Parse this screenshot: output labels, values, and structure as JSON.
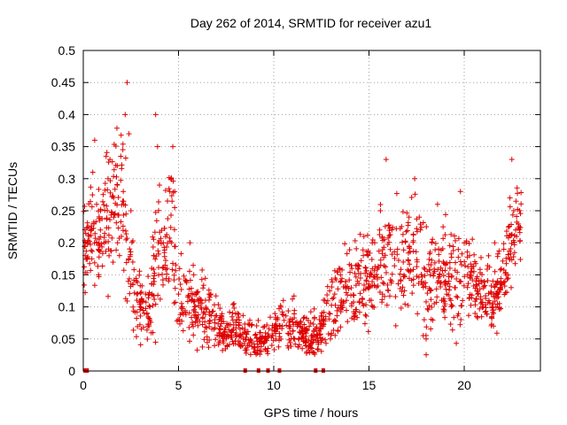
{
  "chart_data": {
    "type": "scatter",
    "title": "Day 262 of 2014, SRMTID for receiver azu1",
    "xlabel": "GPS time / hours",
    "ylabel": "SRMTID / TECUs",
    "xlim": [
      0,
      24
    ],
    "ylim": [
      0,
      0.5
    ],
    "grid": true,
    "marker": "+",
    "color": "#e00000",
    "xticks": [
      0,
      5,
      10,
      15,
      20
    ],
    "xtick_labels": [
      "0",
      "5",
      "10",
      "15",
      "20"
    ],
    "yticks": [
      0,
      0.05,
      0.1,
      0.15,
      0.2,
      0.25,
      0.3,
      0.35,
      0.4,
      0.45,
      0.5
    ],
    "ytick_labels": [
      "0",
      "0.05",
      "0.1",
      "0.15",
      "0.2",
      "0.25",
      "0.3",
      "0.35",
      "0.4",
      "0.45",
      "0.5"
    ],
    "zero_values_x": [
      0.1,
      0.2,
      8.5,
      9.2,
      9.7,
      10.3,
      12.2,
      12.6
    ],
    "envelope": {
      "x": [
        0,
        0.5,
        1,
        1.5,
        2,
        2.2,
        2.5,
        3,
        3.5,
        3.8,
        4.2,
        4.6,
        5,
        5.5,
        6,
        6.5,
        7,
        7.5,
        8,
        8.5,
        9,
        9.5,
        10,
        10.5,
        11,
        11.5,
        12,
        12.5,
        13,
        13.5,
        14,
        14.5,
        15,
        15.5,
        16,
        16.5,
        17,
        17.5,
        18,
        18.5,
        19,
        19.5,
        20,
        20.5,
        21,
        21.5,
        22,
        22.5,
        23
      ],
      "center": [
        0.2,
        0.21,
        0.22,
        0.25,
        0.27,
        0.23,
        0.15,
        0.1,
        0.09,
        0.17,
        0.2,
        0.24,
        0.12,
        0.1,
        0.1,
        0.09,
        0.07,
        0.065,
        0.06,
        0.05,
        0.045,
        0.045,
        0.06,
        0.075,
        0.065,
        0.06,
        0.05,
        0.06,
        0.1,
        0.12,
        0.13,
        0.14,
        0.14,
        0.17,
        0.18,
        0.16,
        0.17,
        0.18,
        0.12,
        0.16,
        0.15,
        0.14,
        0.15,
        0.13,
        0.12,
        0.11,
        0.14,
        0.2,
        0.25
      ],
      "spread": [
        0.06,
        0.06,
        0.07,
        0.08,
        0.09,
        0.08,
        0.06,
        0.04,
        0.04,
        0.08,
        0.07,
        0.08,
        0.05,
        0.04,
        0.04,
        0.04,
        0.03,
        0.03,
        0.03,
        0.025,
        0.025,
        0.025,
        0.03,
        0.03,
        0.03,
        0.025,
        0.025,
        0.03,
        0.04,
        0.05,
        0.05,
        0.05,
        0.06,
        0.07,
        0.07,
        0.07,
        0.07,
        0.07,
        0.06,
        0.07,
        0.06,
        0.06,
        0.05,
        0.05,
        0.04,
        0.04,
        0.05,
        0.06,
        0.06
      ]
    },
    "series": [
      {
        "name": "SRMTID azu1",
        "points": [
          [
            0.1,
            0.18
          ],
          [
            0.3,
            0.21
          ],
          [
            0.5,
            0.31
          ],
          [
            0.6,
            0.36
          ],
          [
            0.7,
            0.26
          ],
          [
            0.8,
            0.15
          ],
          [
            0.9,
            0.22
          ],
          [
            1.1,
            0.2
          ],
          [
            1.3,
            0.3
          ],
          [
            1.4,
            0.33
          ],
          [
            1.6,
            0.24
          ],
          [
            1.8,
            0.2
          ],
          [
            1.9,
            0.18
          ],
          [
            2.0,
            0.21
          ],
          [
            2.1,
            0.28
          ],
          [
            2.2,
            0.4
          ],
          [
            2.3,
            0.45
          ],
          [
            2.4,
            0.37
          ],
          [
            2.5,
            0.25
          ],
          [
            2.6,
            0.17
          ],
          [
            2.8,
            0.12
          ],
          [
            3.0,
            0.1
          ],
          [
            3.2,
            0.09
          ],
          [
            3.4,
            0.07
          ],
          [
            3.5,
            0.1
          ],
          [
            3.6,
            0.12
          ],
          [
            3.7,
            0.18
          ],
          [
            3.8,
            0.4
          ],
          [
            3.9,
            0.35
          ],
          [
            4.0,
            0.29
          ],
          [
            4.2,
            0.2
          ],
          [
            4.4,
            0.16
          ],
          [
            4.6,
            0.3
          ],
          [
            4.7,
            0.35
          ],
          [
            4.8,
            0.28
          ],
          [
            5.0,
            0.12
          ],
          [
            5.2,
            0.1
          ],
          [
            5.4,
            0.14
          ],
          [
            5.6,
            0.2
          ],
          [
            5.8,
            0.15
          ],
          [
            6.0,
            0.08
          ],
          [
            6.3,
            0.09
          ],
          [
            6.6,
            0.12
          ],
          [
            6.9,
            0.08
          ],
          [
            7.2,
            0.07
          ],
          [
            7.5,
            0.05
          ],
          [
            7.8,
            0.06
          ],
          [
            8.1,
            0.09
          ],
          [
            8.4,
            0.05
          ],
          [
            8.7,
            0.04
          ],
          [
            9.0,
            0.03
          ],
          [
            9.3,
            0.06
          ],
          [
            9.6,
            0.05
          ],
          [
            9.9,
            0.04
          ],
          [
            10.2,
            0.08
          ],
          [
            10.5,
            0.11
          ],
          [
            10.8,
            0.07
          ],
          [
            11.1,
            0.05
          ],
          [
            11.4,
            0.07
          ],
          [
            11.7,
            0.04
          ],
          [
            12.0,
            0.03
          ],
          [
            12.3,
            0.05
          ],
          [
            12.6,
            0.07
          ],
          [
            12.9,
            0.09
          ],
          [
            13.2,
            0.12
          ],
          [
            13.5,
            0.15
          ],
          [
            13.8,
            0.13
          ],
          [
            14.1,
            0.16
          ],
          [
            14.4,
            0.14
          ],
          [
            14.7,
            0.18
          ],
          [
            15.0,
            0.13
          ],
          [
            15.3,
            0.2
          ],
          [
            15.6,
            0.25
          ],
          [
            15.9,
            0.33
          ],
          [
            16.2,
            0.22
          ],
          [
            16.5,
            0.19
          ],
          [
            16.8,
            0.17
          ],
          [
            17.1,
            0.24
          ],
          [
            17.4,
            0.3
          ],
          [
            17.7,
            0.22
          ],
          [
            17.9,
            0.08
          ],
          [
            18.0,
            0.05
          ],
          [
            18.3,
            0.2
          ],
          [
            18.6,
            0.26
          ],
          [
            18.9,
            0.17
          ],
          [
            19.2,
            0.14
          ],
          [
            19.5,
            0.13
          ],
          [
            19.8,
            0.28
          ],
          [
            20.1,
            0.2
          ],
          [
            20.4,
            0.16
          ],
          [
            20.7,
            0.12
          ],
          [
            21.0,
            0.1
          ],
          [
            21.3,
            0.11
          ],
          [
            21.6,
            0.2
          ],
          [
            21.9,
            0.13
          ],
          [
            22.2,
            0.15
          ],
          [
            22.4,
            0.27
          ],
          [
            22.5,
            0.33
          ],
          [
            22.6,
            0.25
          ],
          [
            22.7,
            0.22
          ]
        ]
      }
    ]
  }
}
